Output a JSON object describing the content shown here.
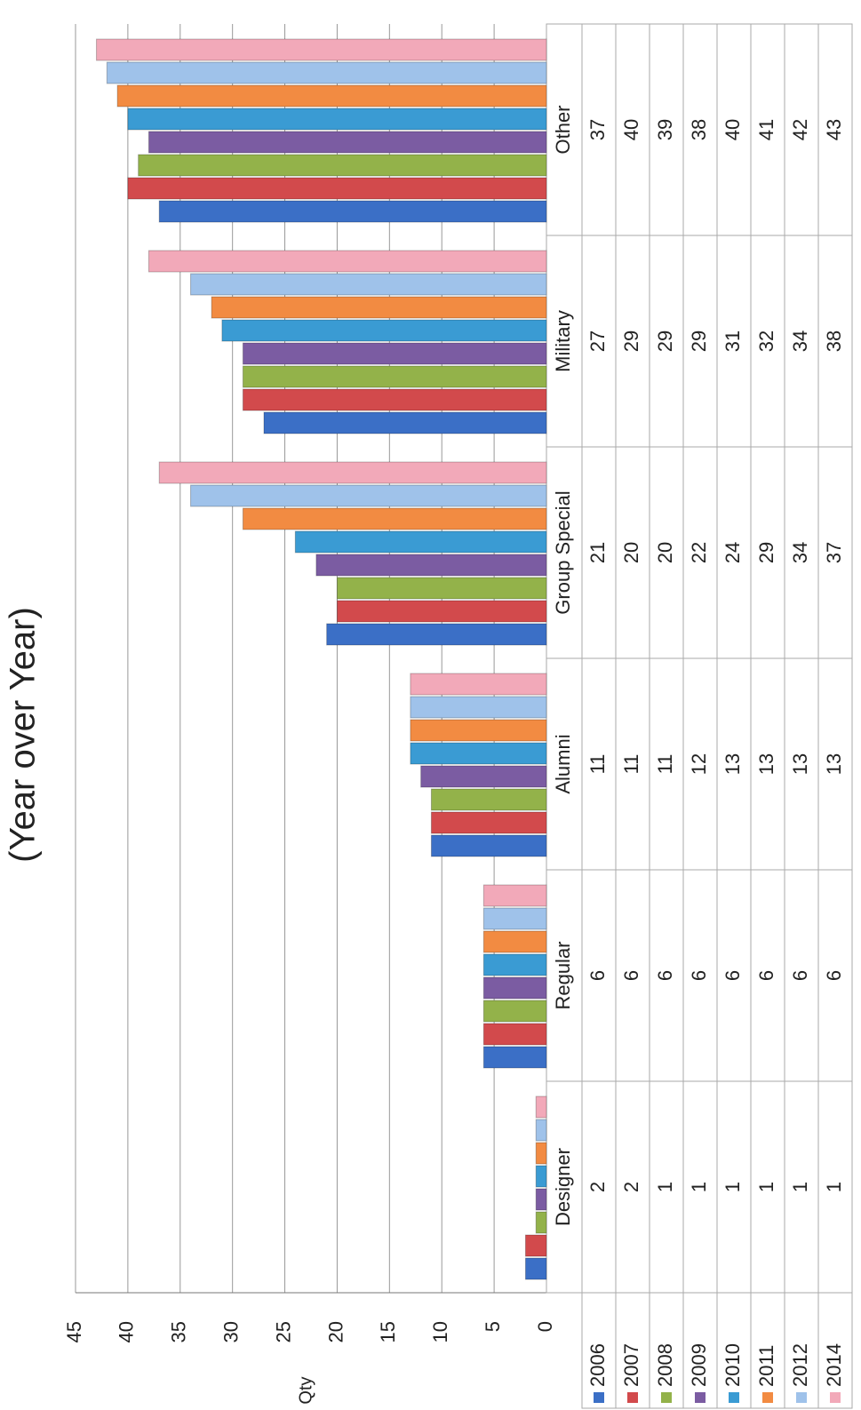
{
  "chart_data": {
    "type": "bar",
    "subtitle": "(Year over Year)",
    "y_label": "Qty",
    "categories": [
      "Designer",
      "Regular",
      "Alumni",
      "Group Special",
      "Military",
      "Other"
    ],
    "series": [
      {
        "name": "2006",
        "color": "#3b6fc6",
        "values": [
          2,
          6,
          11,
          21,
          27,
          37
        ]
      },
      {
        "name": "2007",
        "color": "#d24a4c",
        "values": [
          2,
          6,
          11,
          20,
          29,
          40
        ]
      },
      {
        "name": "2008",
        "color": "#93b24a",
        "values": [
          1,
          6,
          11,
          20,
          29,
          39
        ]
      },
      {
        "name": "2009",
        "color": "#7b5ca2",
        "values": [
          1,
          6,
          12,
          22,
          29,
          38
        ]
      },
      {
        "name": "2010",
        "color": "#3a9bd3",
        "values": [
          1,
          6,
          13,
          24,
          31,
          40
        ]
      },
      {
        "name": "2011",
        "color": "#f28b42",
        "values": [
          1,
          6,
          13,
          29,
          32,
          41
        ]
      },
      {
        "name": "2012",
        "color": "#9fc2ea",
        "values": [
          1,
          6,
          13,
          34,
          34,
          42
        ]
      },
      {
        "name": "2014",
        "color": "#f2a9b9",
        "values": [
          1,
          6,
          13,
          37,
          38,
          43
        ]
      }
    ],
    "ylim": [
      0,
      45
    ],
    "yticks": [
      0,
      5,
      10,
      15,
      20,
      25,
      30,
      35,
      40,
      45
    ],
    "grid": true
  }
}
